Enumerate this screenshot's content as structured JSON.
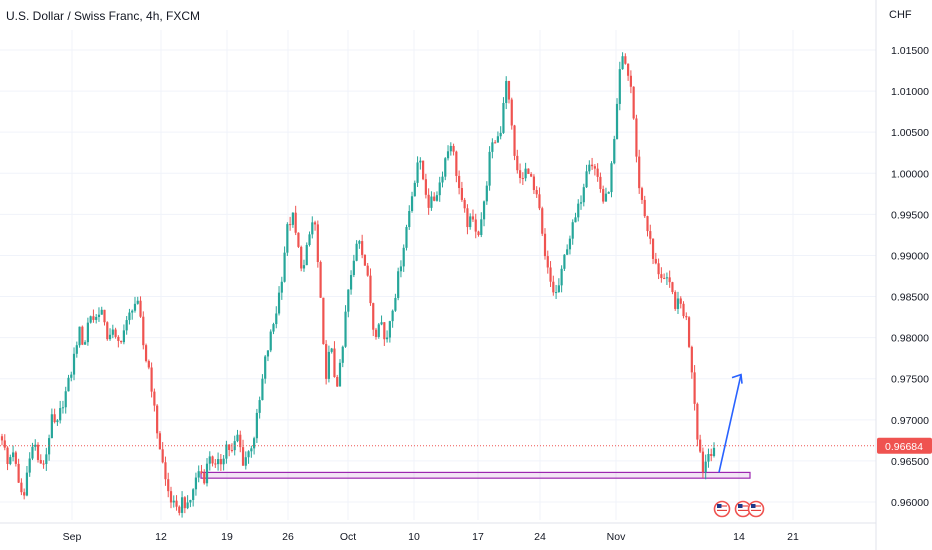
{
  "chart_data": {
    "type": "candlestick",
    "title": "U.S. Dollar / Swiss Franc, 4h, FXCM",
    "currency": "CHF",
    "y_ticks": [
      "1.01500",
      "1.01000",
      "1.00500",
      "1.00000",
      "0.99500",
      "0.99000",
      "0.98500",
      "0.98000",
      "0.97500",
      "0.97000",
      "0.96500",
      "0.96000"
    ],
    "x_ticks": [
      "Sep",
      "12",
      "19",
      "26",
      "Oct",
      "10",
      "17",
      "24",
      "Nov",
      "14",
      "21"
    ],
    "ylim": [
      0.9585,
      1.0165
    ],
    "last_price": "0.96684",
    "last_price_value": 0.96684,
    "support_zone": {
      "low": 0.9629,
      "high": 0.9636,
      "start": "Sep 16",
      "end": "Nov 15"
    },
    "projection_arrow": {
      "from": 0.9636,
      "to": 0.9755
    },
    "event_markers": [
      "us-flag",
      "us-flag",
      "us-flag"
    ],
    "price_path": [
      [
        0,
        0.968
      ],
      [
        2,
        0.9645
      ],
      [
        4,
        0.9665
      ],
      [
        6,
        0.962
      ],
      [
        8,
        0.9605
      ],
      [
        10,
        0.966
      ],
      [
        12,
        0.967
      ],
      [
        14,
        0.964
      ],
      [
        16,
        0.9655
      ],
      [
        18,
        0.97
      ],
      [
        20,
        0.969
      ],
      [
        22,
        0.972
      ],
      [
        24,
        0.974
      ],
      [
        26,
        0.977
      ],
      [
        28,
        0.981
      ],
      [
        30,
        0.979
      ],
      [
        32,
        0.983
      ],
      [
        34,
        0.982
      ],
      [
        36,
        0.984
      ],
      [
        38,
        0.98
      ],
      [
        40,
        0.981
      ],
      [
        42,
        0.979
      ],
      [
        44,
        0.9805
      ],
      [
        46,
        0.982
      ],
      [
        48,
        0.9845
      ],
      [
        50,
        0.9835
      ],
      [
        52,
        0.978
      ],
      [
        54,
        0.976
      ],
      [
        56,
        0.97
      ],
      [
        58,
        0.966
      ],
      [
        60,
        0.962
      ],
      [
        62,
        0.96
      ],
      [
        64,
        0.9585
      ],
      [
        66,
        0.9605
      ],
      [
        68,
        0.959
      ],
      [
        70,
        0.962
      ],
      [
        72,
        0.964
      ],
      [
        74,
        0.963
      ],
      [
        76,
        0.966
      ],
      [
        78,
        0.964
      ],
      [
        80,
        0.965
      ],
      [
        82,
        0.967
      ],
      [
        84,
        0.966
      ],
      [
        86,
        0.968
      ],
      [
        88,
        0.965
      ],
      [
        90,
        0.966
      ],
      [
        92,
        0.968
      ],
      [
        94,
        0.972
      ],
      [
        96,
        0.977
      ],
      [
        98,
        0.98
      ],
      [
        100,
        0.983
      ],
      [
        102,
        0.987
      ],
      [
        104,
        0.993
      ],
      [
        106,
        0.995
      ],
      [
        108,
        0.991
      ],
      [
        110,
        0.988
      ],
      [
        112,
        0.992
      ],
      [
        114,
        0.995
      ],
      [
        116,
        0.986
      ],
      [
        118,
        0.975
      ],
      [
        120,
        0.979
      ],
      [
        122,
        0.974
      ],
      [
        124,
        0.977
      ],
      [
        126,
        0.985
      ],
      [
        128,
        0.988
      ],
      [
        130,
        0.993
      ],
      [
        132,
        0.99
      ],
      [
        134,
        0.986
      ],
      [
        136,
        0.98
      ],
      [
        138,
        0.983
      ],
      [
        140,
        0.979
      ],
      [
        142,
        0.983
      ],
      [
        144,
        0.986
      ],
      [
        146,
        0.99
      ],
      [
        148,
        0.994
      ],
      [
        150,
        0.998
      ],
      [
        152,
        1.002
      ],
      [
        154,
        0.999
      ],
      [
        156,
        0.996
      ],
      [
        158,
        0.997
      ],
      [
        160,
        0.999
      ],
      [
        162,
        1.002
      ],
      [
        164,
        1.004
      ],
      [
        166,
        1.0
      ],
      [
        168,
        0.996
      ],
      [
        170,
        0.994
      ],
      [
        172,
        0.994
      ],
      [
        174,
        0.993
      ],
      [
        176,
        0.996
      ],
      [
        178,
        1.002
      ],
      [
        180,
        1.004
      ],
      [
        182,
        1.005
      ],
      [
        184,
        1.012
      ],
      [
        186,
        1.006
      ],
      [
        188,
        1.0
      ],
      [
        190,
        0.999
      ],
      [
        192,
        1.001
      ],
      [
        194,
        0.998
      ],
      [
        196,
        0.996
      ],
      [
        198,
        0.99
      ],
      [
        200,
        0.987
      ],
      [
        202,
        0.985
      ],
      [
        204,
        0.987
      ],
      [
        206,
        0.991
      ],
      [
        208,
        0.993
      ],
      [
        210,
        0.995
      ],
      [
        212,
        0.998
      ],
      [
        214,
        1.002
      ],
      [
        216,
        1.001
      ],
      [
        218,
        0.999
      ],
      [
        220,
        0.996
      ],
      [
        222,
        0.999
      ],
      [
        224,
        1.005
      ],
      [
        226,
        1.014
      ],
      [
        228,
        1.013
      ],
      [
        230,
        1.01
      ],
      [
        232,
        1.0
      ],
      [
        234,
        0.996
      ],
      [
        236,
        0.993
      ],
      [
        238,
        0.989
      ],
      [
        240,
        0.988
      ],
      [
        242,
        0.987
      ],
      [
        244,
        0.986
      ],
      [
        246,
        0.984
      ],
      [
        248,
        0.984
      ],
      [
        250,
        0.982
      ],
      [
        252,
        0.976
      ],
      [
        254,
        0.968
      ],
      [
        256,
        0.964
      ],
      [
        258,
        0.966
      ],
      [
        260,
        0.9668
      ]
    ]
  }
}
